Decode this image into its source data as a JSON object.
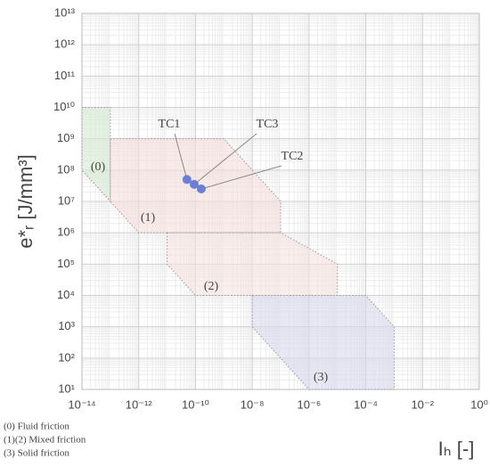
{
  "chart_data": {
    "type": "scatter",
    "x_label": "Iₕ [-]",
    "y_label": "e*ᵣ [J/mm³]",
    "xscale": "log",
    "yscale": "log",
    "grid": true,
    "xlim": [
      1e-14,
      1.0
    ],
    "ylim": [
      10.0,
      10000000000000.0
    ],
    "xticks": [
      {
        "value": 1e-14,
        "label": "10⁻¹⁴"
      },
      {
        "value": 1e-12,
        "label": "10⁻¹²"
      },
      {
        "value": 1e-10,
        "label": "10⁻¹⁰"
      },
      {
        "value": 1e-08,
        "label": "10⁻⁸"
      },
      {
        "value": 1e-06,
        "label": "10⁻⁶"
      },
      {
        "value": 0.0001,
        "label": "10⁻⁴"
      },
      {
        "value": 0.01,
        "label": "10⁻²"
      },
      {
        "value": 1,
        "label": "10⁰"
      }
    ],
    "yticks": [
      {
        "value": 10.0,
        "label": "10¹"
      },
      {
        "value": 100.0,
        "label": "10²"
      },
      {
        "value": 1000.0,
        "label": "10³"
      },
      {
        "value": 10000.0,
        "label": "10⁴"
      },
      {
        "value": 100000.0,
        "label": "10⁵"
      },
      {
        "value": 1000000.0,
        "label": "10⁶"
      },
      {
        "value": 10000000.0,
        "label": "10⁷"
      },
      {
        "value": 100000000.0,
        "label": "10⁸"
      },
      {
        "value": 1000000000.0,
        "label": "10⁹"
      },
      {
        "value": 10000000000.0,
        "label": "10¹⁰"
      },
      {
        "value": 100000000000.0,
        "label": "10¹¹"
      },
      {
        "value": 1000000000000.0,
        "label": "10¹²"
      },
      {
        "value": 10000000000000.0,
        "label": "10¹³"
      }
    ],
    "regions": [
      {
        "name": "(0)",
        "color": "#d5ead0",
        "x": [
          1e-14,
          1e-13,
          1e-13,
          1e-14
        ],
        "y": [
          10000000000.0,
          10000000000.0,
          10000000.0,
          100000000.0
        ]
      },
      {
        "name": "(1)",
        "color": "#f7dede",
        "x": [
          1e-13,
          1e-09,
          1e-07,
          1e-07,
          1e-12,
          1e-13
        ],
        "y": [
          1000000000.0,
          1000000000.0,
          10000000.0,
          1000000.0,
          1000000.0,
          10000000.0
        ]
      },
      {
        "name": "(2)",
        "color": "#f7e2e0",
        "x": [
          1e-11,
          1e-07,
          1e-05,
          1e-05,
          1e-10,
          1e-11
        ],
        "y": [
          1000000.0,
          1000000.0,
          100000.0,
          10000.0,
          10000.0,
          100000.0
        ]
      },
      {
        "name": "(3)",
        "color": "#d9d8ec",
        "x": [
          1e-08,
          0.0001,
          0.001,
          0.001,
          1e-06,
          1e-08
        ],
        "y": [
          10000.0,
          10000.0,
          1000.0,
          10.0,
          10.0,
          1000.0
        ]
      }
    ],
    "series": [
      {
        "color": "#6b7fd6",
        "x": [
          5e-11,
          9e-11,
          1.6e-10
        ],
        "values": [
          50000000.0,
          35000000.0,
          25000000.0
        ],
        "labels": [
          "TC1",
          "TC3",
          "TC2"
        ]
      }
    ],
    "notes": [
      "(0) Fluid friction",
      "(1)(2) Mixed friction",
      "(3) Solid friction"
    ]
  }
}
